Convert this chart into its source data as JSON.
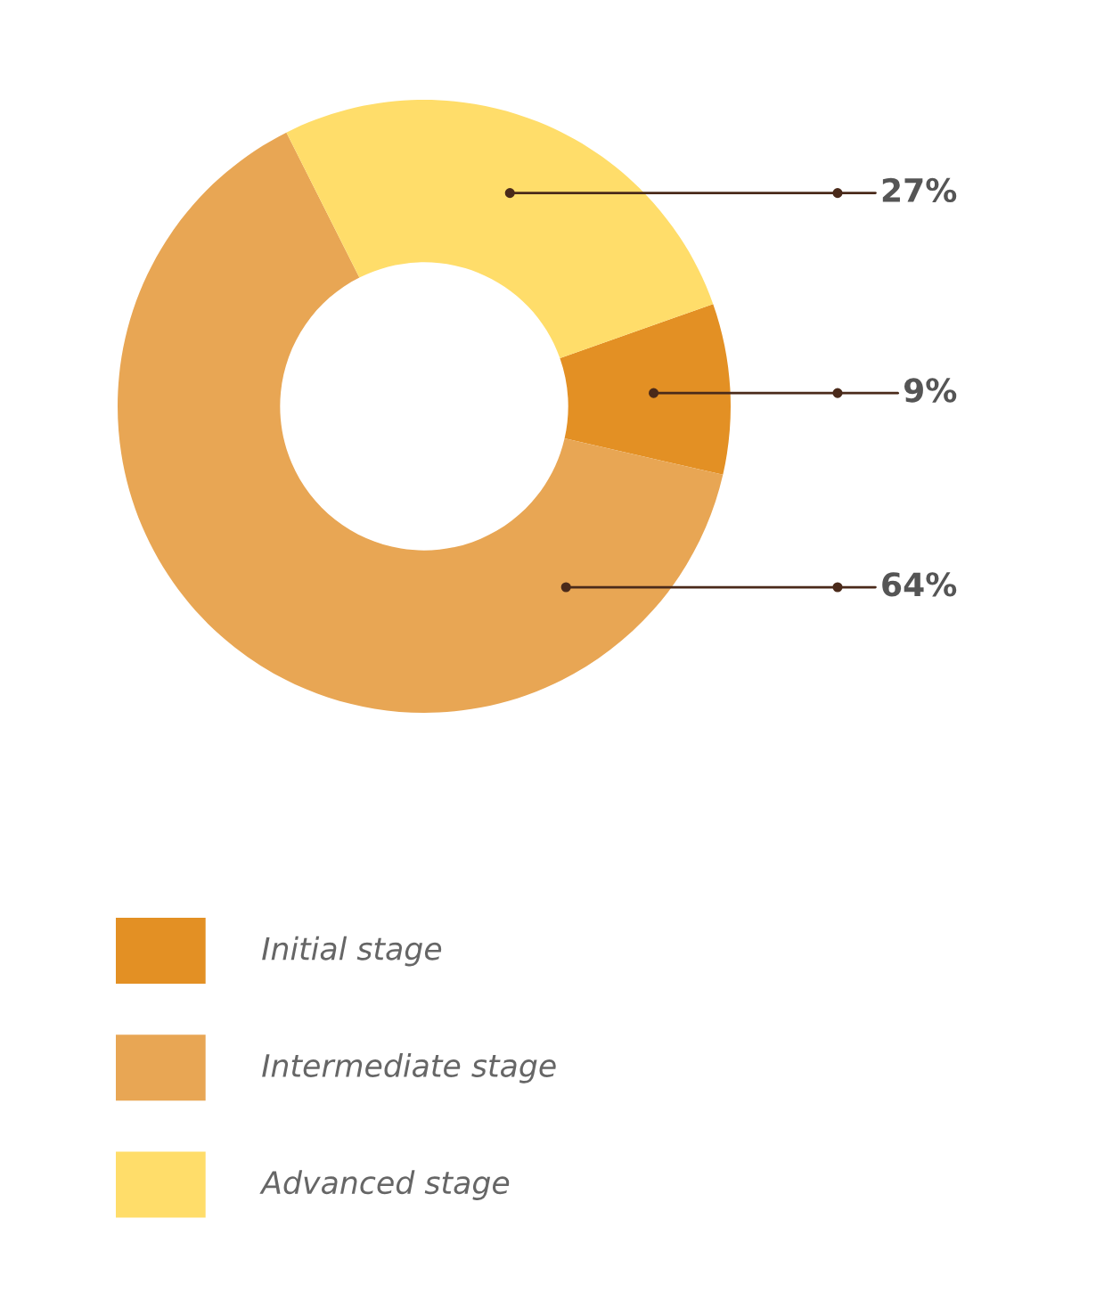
{
  "chart_data": {
    "type": "donut",
    "categories": [
      "Initial stage",
      "Intermediate stage",
      "Advanced stage"
    ],
    "values": [
      9,
      64,
      27
    ],
    "colors": [
      "#e39024",
      "#e8a654",
      "#ffdd6a"
    ],
    "value_labels": [
      "9%",
      "64%",
      "27%"
    ],
    "legend": "bottom"
  }
}
